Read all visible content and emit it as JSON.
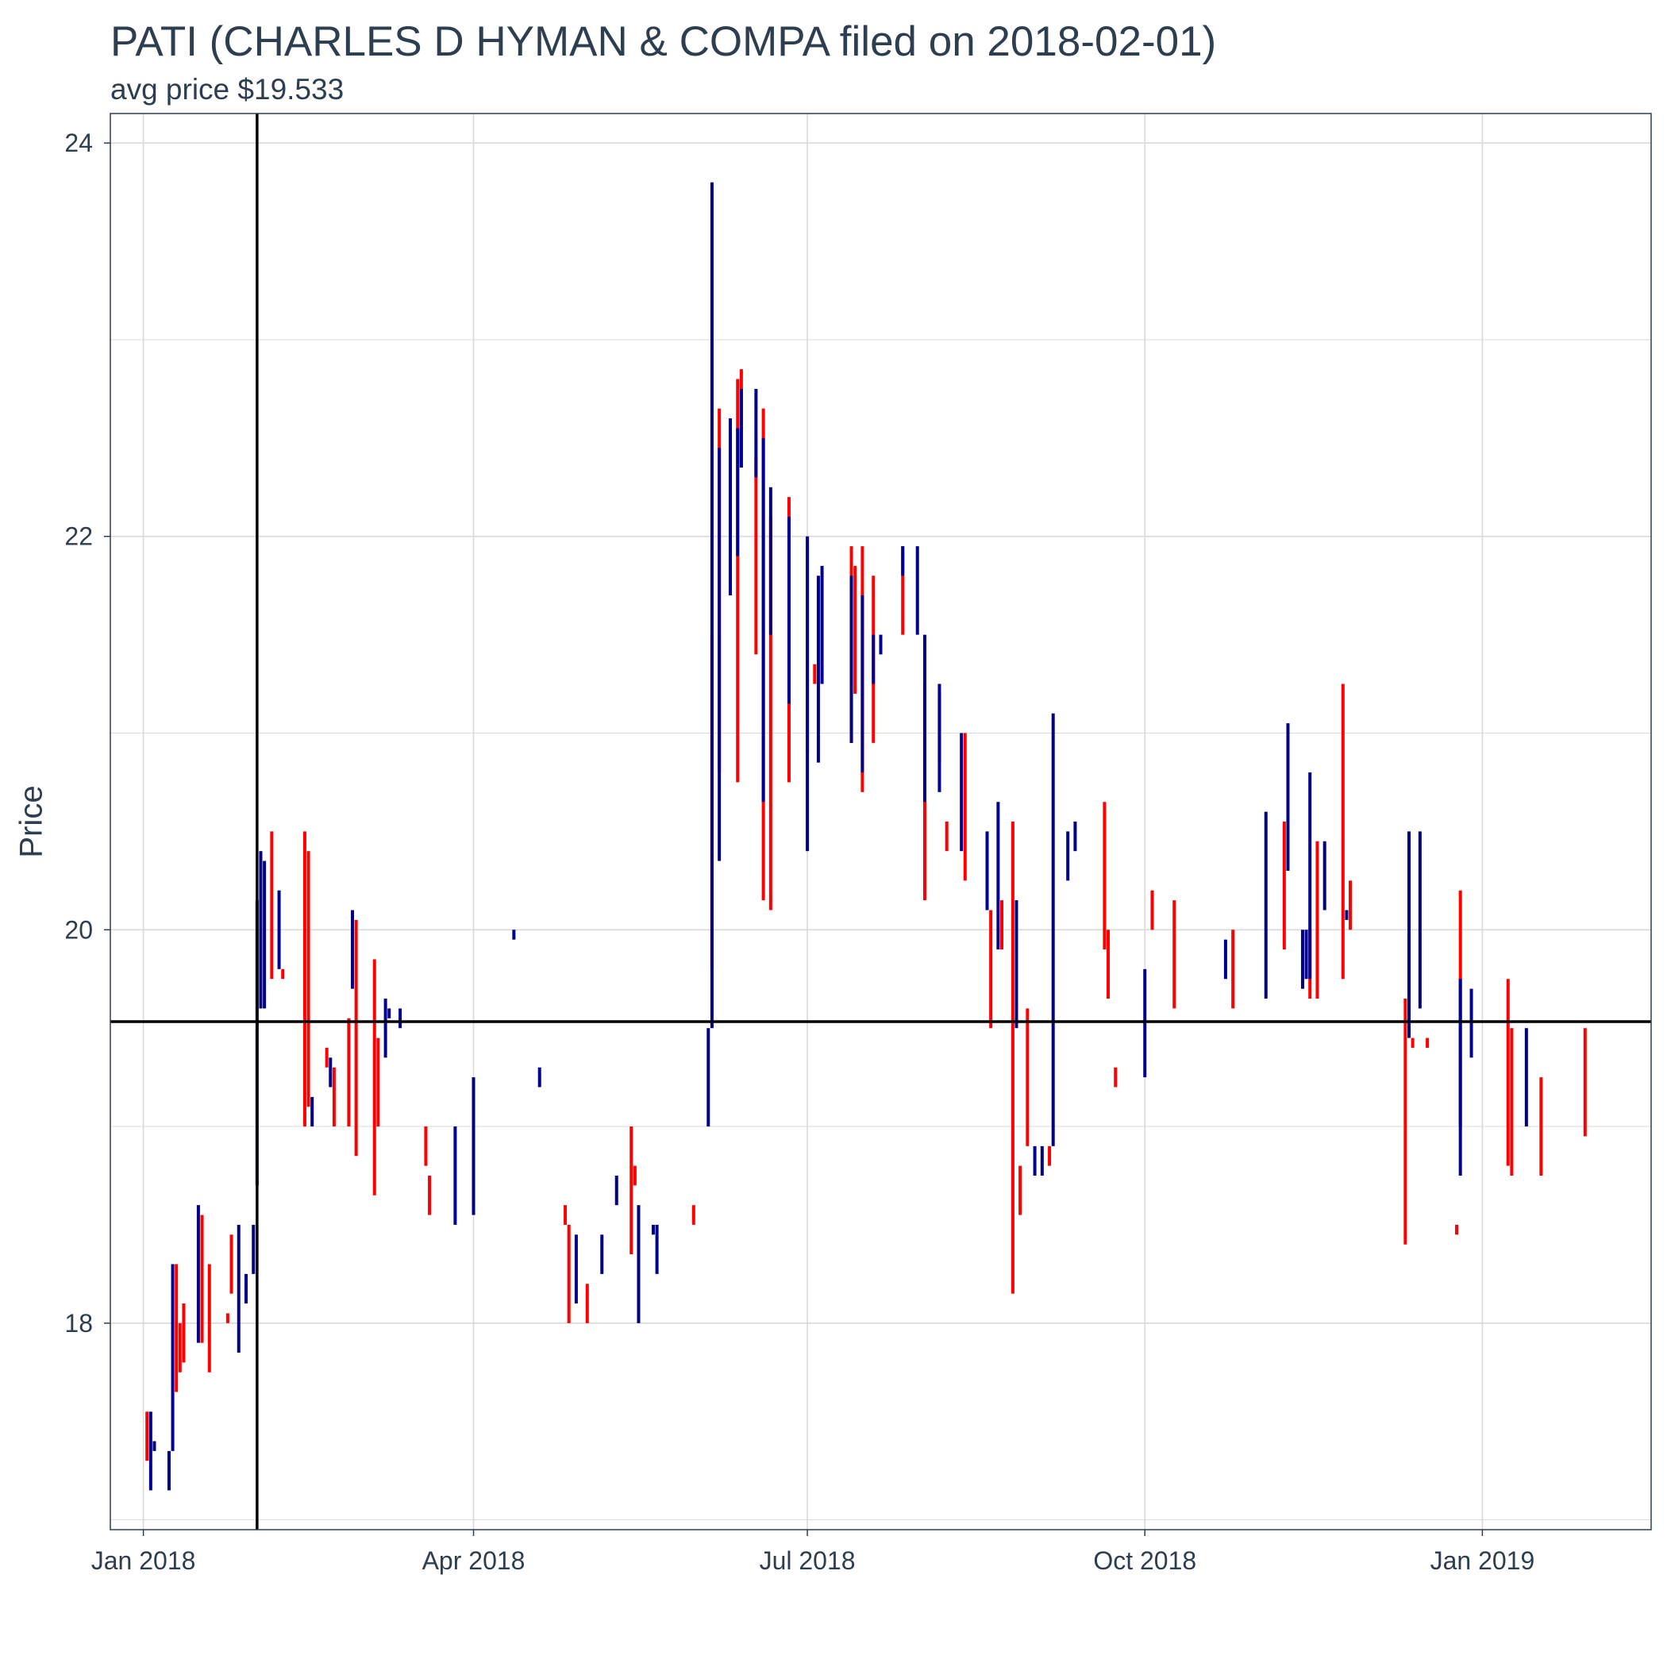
{
  "chart_data": {
    "type": "bar",
    "subtype": "ohlc-range-bars",
    "title": "PATI (CHARLES D HYMAN & COMPA filed on 2018-02-01)",
    "subtitle": "avg price $19.533",
    "xlabel": "",
    "ylabel": "Price",
    "ylim": [
      16.95,
      24.15
    ],
    "xlim": [
      "2017-12-23",
      "2019-02-16"
    ],
    "grid": true,
    "y_ticks": [
      18,
      20,
      22,
      24
    ],
    "x_ticks": [
      {
        "date": "2018-01-01",
        "label": "Jan 2018"
      },
      {
        "date": "2018-04-01",
        "label": "Apr 2018"
      },
      {
        "date": "2018-07-01",
        "label": "Jul 2018"
      },
      {
        "date": "2018-10-01",
        "label": "Oct 2018"
      },
      {
        "date": "2019-01-01",
        "label": "Jan 2019"
      }
    ],
    "reference_lines": {
      "filing_date": "2018-02-01",
      "avg_price": 19.533
    },
    "colors": {
      "up": "#00008b",
      "down": "#ff0000",
      "reference": "#000000",
      "grid": "#d9d9d9",
      "text": "#2c3e50"
    },
    "series": [
      {
        "color": "red",
        "bars": [
          [
            "2018-01-02",
            17.3,
            17.55
          ],
          [
            "2018-01-10",
            17.65,
            18.3
          ],
          [
            "2018-01-11",
            17.75,
            18.0
          ],
          [
            "2018-01-12",
            17.8,
            18.1
          ],
          [
            "2018-01-17",
            17.9,
            18.55
          ],
          [
            "2018-01-19",
            17.75,
            18.3
          ],
          [
            "2018-01-24",
            18.0,
            18.05
          ],
          [
            "2018-01-25",
            18.15,
            18.45
          ],
          [
            "2018-02-05",
            19.75,
            20.5
          ],
          [
            "2018-02-08",
            19.75,
            19.8
          ],
          [
            "2018-02-14",
            19.0,
            20.5
          ],
          [
            "2018-02-15",
            19.1,
            20.4
          ],
          [
            "2018-02-20",
            19.3,
            19.4
          ],
          [
            "2018-02-22",
            19.0,
            19.3
          ],
          [
            "2018-02-26",
            19.0,
            19.55
          ],
          [
            "2018-02-28",
            18.85,
            20.05
          ],
          [
            "2018-03-05",
            18.65,
            19.85
          ],
          [
            "2018-03-06",
            19.0,
            19.45
          ],
          [
            "2018-03-19",
            18.8,
            19.0
          ],
          [
            "2018-03-20",
            18.55,
            18.75
          ],
          [
            "2018-04-26",
            18.5,
            18.6
          ],
          [
            "2018-04-27",
            18.0,
            18.5
          ],
          [
            "2018-05-02",
            18.0,
            18.2
          ],
          [
            "2018-05-14",
            18.35,
            19.0
          ],
          [
            "2018-05-15",
            18.7,
            18.8
          ],
          [
            "2018-05-31",
            18.5,
            18.6
          ],
          [
            "2018-06-05",
            19.8,
            21.5
          ],
          [
            "2018-06-07",
            20.8,
            22.65
          ],
          [
            "2018-06-12",
            20.75,
            22.8
          ],
          [
            "2018-06-13",
            22.35,
            22.85
          ],
          [
            "2018-06-17",
            21.4,
            22.4
          ],
          [
            "2018-06-19",
            20.15,
            22.65
          ],
          [
            "2018-06-21",
            20.1,
            22.1
          ],
          [
            "2018-06-26",
            20.75,
            22.2
          ],
          [
            "2018-07-01",
            20.9,
            21.95
          ],
          [
            "2018-07-03",
            21.25,
            21.35
          ],
          [
            "2018-07-13",
            20.95,
            21.95
          ],
          [
            "2018-07-14",
            21.2,
            21.85
          ],
          [
            "2018-07-16",
            20.7,
            21.95
          ],
          [
            "2018-07-19",
            20.95,
            21.8
          ],
          [
            "2018-07-27",
            21.5,
            21.95
          ],
          [
            "2018-08-02",
            20.15,
            21.25
          ],
          [
            "2018-08-06",
            20.85,
            21.2
          ],
          [
            "2018-08-08",
            20.4,
            20.55
          ],
          [
            "2018-08-13",
            20.25,
            21.0
          ],
          [
            "2018-08-20",
            19.5,
            20.1
          ],
          [
            "2018-08-23",
            19.9,
            20.15
          ],
          [
            "2018-08-26",
            18.15,
            20.55
          ],
          [
            "2018-08-28",
            18.55,
            18.8
          ],
          [
            "2018-08-30",
            18.9,
            19.6
          ],
          [
            "2018-09-05",
            18.8,
            18.9
          ],
          [
            "2018-09-20",
            19.9,
            20.65
          ],
          [
            "2018-09-21",
            19.65,
            20.0
          ],
          [
            "2018-09-23",
            19.2,
            19.3
          ],
          [
            "2018-10-03",
            20.0,
            20.2
          ],
          [
            "2018-10-09",
            19.6,
            20.15
          ],
          [
            "2018-10-25",
            19.6,
            20.0
          ],
          [
            "2018-11-08",
            19.9,
            20.55
          ],
          [
            "2018-11-15",
            19.65,
            20.0
          ],
          [
            "2018-11-17",
            19.65,
            20.45
          ],
          [
            "2018-11-24",
            19.75,
            21.25
          ],
          [
            "2018-11-26",
            20.0,
            20.25
          ],
          [
            "2018-12-11",
            18.4,
            19.65
          ],
          [
            "2018-12-13",
            19.4,
            19.45
          ],
          [
            "2018-12-17",
            19.4,
            19.45
          ],
          [
            "2018-12-25",
            18.45,
            18.5
          ],
          [
            "2018-12-26",
            19.0,
            20.2
          ],
          [
            "2019-01-08",
            18.8,
            19.75
          ],
          [
            "2019-01-09",
            18.75,
            19.5
          ],
          [
            "2019-01-17",
            18.75,
            19.25
          ],
          [
            "2019-01-29",
            18.95,
            19.5
          ]
        ]
      },
      {
        "color": "blue",
        "bars": [
          [
            "2018-01-03",
            17.15,
            17.55
          ],
          [
            "2018-01-04",
            17.35,
            17.4
          ],
          [
            "2018-01-08",
            17.15,
            17.35
          ],
          [
            "2018-01-09",
            17.35,
            18.3
          ],
          [
            "2018-01-16",
            17.9,
            18.6
          ],
          [
            "2018-01-27",
            17.85,
            18.5
          ],
          [
            "2018-01-29",
            18.1,
            18.25
          ],
          [
            "2018-01-31",
            18.25,
            18.5
          ],
          [
            "2018-02-01",
            18.7,
            20.15
          ],
          [
            "2018-02-02",
            19.6,
            20.4
          ],
          [
            "2018-02-03",
            19.6,
            20.35
          ],
          [
            "2018-02-07",
            19.8,
            20.2
          ],
          [
            "2018-02-16",
            19.0,
            19.15
          ],
          [
            "2018-02-21",
            19.2,
            19.35
          ],
          [
            "2018-02-27",
            19.7,
            20.1
          ],
          [
            "2018-03-08",
            19.35,
            19.65
          ],
          [
            "2018-03-09",
            19.55,
            19.6
          ],
          [
            "2018-03-12",
            19.5,
            19.6
          ],
          [
            "2018-03-27",
            18.5,
            19.0
          ],
          [
            "2018-04-01",
            18.55,
            19.25
          ],
          [
            "2018-04-12",
            19.95,
            20.0
          ],
          [
            "2018-04-19",
            19.2,
            19.3
          ],
          [
            "2018-04-29",
            18.1,
            18.45
          ],
          [
            "2018-05-06",
            18.25,
            18.45
          ],
          [
            "2018-05-10",
            18.6,
            18.75
          ],
          [
            "2018-05-16",
            18.0,
            18.6
          ],
          [
            "2018-05-20",
            18.45,
            18.5
          ],
          [
            "2018-05-21",
            18.25,
            18.5
          ],
          [
            "2018-06-04",
            19.0,
            19.5
          ],
          [
            "2018-06-05",
            19.5,
            23.8
          ],
          [
            "2018-06-07",
            20.35,
            22.45
          ],
          [
            "2018-06-10",
            21.7,
            22.6
          ],
          [
            "2018-06-12",
            21.9,
            22.55
          ],
          [
            "2018-06-13",
            22.35,
            22.75
          ],
          [
            "2018-06-17",
            22.3,
            22.75
          ],
          [
            "2018-06-19",
            20.65,
            22.5
          ],
          [
            "2018-06-21",
            21.5,
            22.25
          ],
          [
            "2018-06-26",
            21.15,
            22.1
          ],
          [
            "2018-07-01",
            20.4,
            22.0
          ],
          [
            "2018-07-04",
            20.85,
            21.8
          ],
          [
            "2018-07-05",
            21.25,
            21.85
          ],
          [
            "2018-07-13",
            20.95,
            21.8
          ],
          [
            "2018-07-16",
            20.8,
            21.7
          ],
          [
            "2018-07-19",
            21.25,
            21.5
          ],
          [
            "2018-07-21",
            21.4,
            21.5
          ],
          [
            "2018-07-27",
            21.8,
            21.95
          ],
          [
            "2018-07-31",
            21.5,
            21.95
          ],
          [
            "2018-08-02",
            20.65,
            21.5
          ],
          [
            "2018-08-06",
            20.7,
            21.25
          ],
          [
            "2018-08-12",
            20.4,
            21.0
          ],
          [
            "2018-08-19",
            20.1,
            20.5
          ],
          [
            "2018-08-22",
            19.9,
            20.65
          ],
          [
            "2018-08-27",
            19.5,
            20.15
          ],
          [
            "2018-09-01",
            18.75,
            18.9
          ],
          [
            "2018-09-03",
            18.75,
            18.9
          ],
          [
            "2018-09-06",
            18.9,
            21.1
          ],
          [
            "2018-09-10",
            20.25,
            20.5
          ],
          [
            "2018-09-12",
            20.4,
            20.55
          ],
          [
            "2018-10-01",
            19.25,
            19.8
          ],
          [
            "2018-10-23",
            19.75,
            19.95
          ],
          [
            "2018-11-03",
            19.65,
            20.6
          ],
          [
            "2018-11-09",
            20.3,
            21.05
          ],
          [
            "2018-11-13",
            19.7,
            20.0
          ],
          [
            "2018-11-14",
            19.75,
            20.0
          ],
          [
            "2018-11-15",
            19.75,
            20.8
          ],
          [
            "2018-11-19",
            20.1,
            20.45
          ],
          [
            "2018-11-25",
            20.05,
            20.1
          ],
          [
            "2018-12-12",
            19.45,
            20.5
          ],
          [
            "2018-12-15",
            19.6,
            20.5
          ],
          [
            "2018-12-26",
            18.75,
            19.75
          ],
          [
            "2018-12-29",
            19.35,
            19.7
          ],
          [
            "2019-01-13",
            19.0,
            19.5
          ]
        ]
      }
    ]
  }
}
